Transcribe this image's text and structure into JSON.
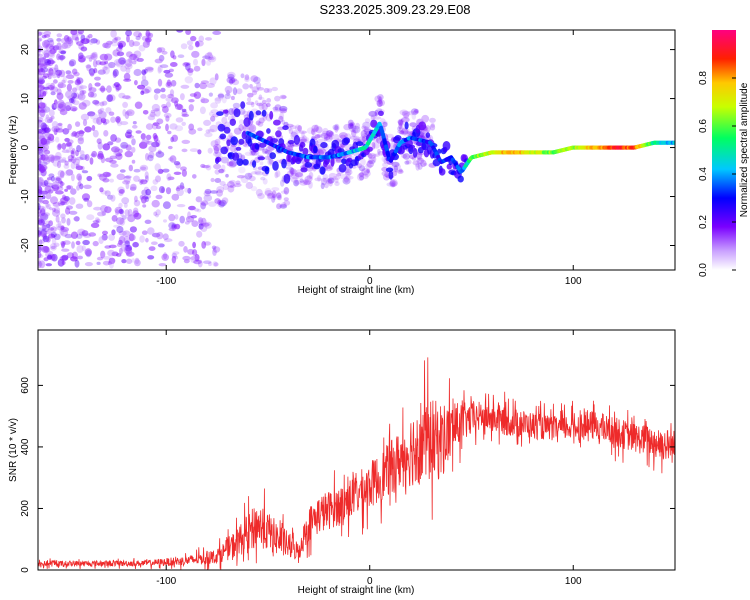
{
  "title": "S233.2025.309.23.29.E08",
  "colors": {
    "snr_line": "#ee2a2a",
    "ridge_low": "#6a00ff",
    "ridge_high": "#ff0000",
    "scatter": "#8a2be2"
  },
  "chart_data": [
    {
      "type": "heatmap",
      "xlabel": "Height of straight line (km)",
      "ylabel": "Frequency (Hz)",
      "xlim": [
        -163,
        150
      ],
      "ylim": [
        -25,
        24
      ],
      "xticks": [
        -100,
        0,
        100
      ],
      "yticks": [
        -20,
        -10,
        0,
        10,
        20
      ],
      "grid": false,
      "colorbar": {
        "label": "Normalized spectral amplitude",
        "range": [
          0,
          1
        ],
        "ticks": [
          "0.0",
          "0.2",
          "0.4",
          "0.6",
          "0.8"
        ],
        "colormap": "rainbow"
      },
      "ridge": {
        "x": [
          -60,
          -50,
          -40,
          -30,
          -20,
          -10,
          -2,
          5,
          10,
          15,
          20,
          30,
          35,
          40,
          45,
          50,
          60,
          70,
          80,
          90,
          100,
          110,
          120,
          130,
          140,
          150
        ],
        "y": [
          3,
          1,
          -1,
          -2,
          -2,
          -1,
          0,
          5,
          -3,
          1,
          2,
          1,
          -3,
          -2,
          -5,
          -2,
          -1,
          -1,
          -1,
          -1,
          0,
          0,
          0,
          0,
          1,
          1
        ],
        "amplitude": [
          0.35,
          0.3,
          0.3,
          0.35,
          0.35,
          0.4,
          0.5,
          0.4,
          0.3,
          0.35,
          0.35,
          0.3,
          0.3,
          0.3,
          0.35,
          0.6,
          0.7,
          0.8,
          0.7,
          0.6,
          0.65,
          0.8,
          0.9,
          0.85,
          0.5,
          0.4
        ]
      }
    },
    {
      "type": "line",
      "xlabel": "Height of straight line (km)",
      "ylabel": "SNR (10 * v/v)",
      "xlim": [
        -163,
        150
      ],
      "ylim": [
        0,
        780
      ],
      "xticks": [
        -100,
        0,
        100
      ],
      "yticks": [
        0,
        200,
        400,
        600
      ],
      "grid": false,
      "envelope": {
        "x": [
          -163,
          -110,
          -90,
          -75,
          -65,
          -55,
          -45,
          -35,
          -30,
          -25,
          -15,
          -5,
          5,
          15,
          25,
          35,
          45,
          55,
          70,
          90,
          110,
          130,
          150
        ],
        "mean": [
          20,
          22,
          30,
          45,
          90,
          150,
          100,
          60,
          150,
          180,
          210,
          250,
          300,
          360,
          420,
          420,
          480,
          500,
          480,
          460,
          470,
          430,
          400
        ],
        "spread": [
          12,
          12,
          20,
          30,
          60,
          90,
          70,
          40,
          70,
          80,
          80,
          90,
          100,
          120,
          180,
          160,
          80,
          60,
          60,
          50,
          60,
          60,
          70
        ]
      }
    }
  ]
}
